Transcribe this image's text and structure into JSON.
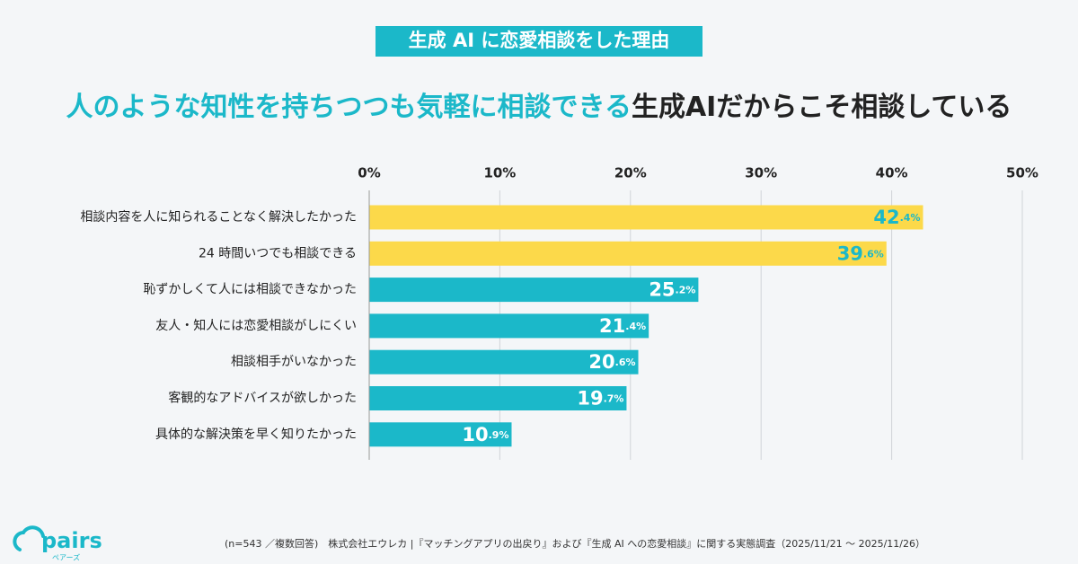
{
  "title_box": "生成 AI に恋愛相談をした理由",
  "headline": {
    "highlight": "人のような知性を持ちつつも気軽に相談できる",
    "rest": "生成AIだからこそ相談している"
  },
  "chart_data": {
    "type": "bar",
    "orientation": "horizontal",
    "categories": [
      "相談内容を人に知られることなく解決したかった",
      "24 時間いつでも相談できる",
      "恥ずかしくて人には相談できなかった",
      "友人・知人には恋愛相談がしにくい",
      "相談相手がいなかった",
      "客観的なアドバイスが欲しかった",
      "具体的な解決策を早く知りたかった"
    ],
    "values": [
      42.4,
      39.6,
      25.2,
      21.4,
      20.6,
      19.7,
      10.9
    ],
    "value_labels": [
      "42.4%",
      "39.6%",
      "25.2%",
      "21.4%",
      "20.6%",
      "19.7%",
      "10.9%"
    ],
    "colors": [
      "#fcd94a",
      "#fcd94a",
      "#1bb8c9",
      "#1bb8c9",
      "#1bb8c9",
      "#1bb8c9",
      "#1bb8c9"
    ],
    "value_label_colors": [
      "#1bb8c9",
      "#1bb8c9",
      "#ffffff",
      "#ffffff",
      "#ffffff",
      "#ffffff",
      "#ffffff"
    ],
    "xlim": [
      0,
      50
    ],
    "xticks": [
      {
        "value": 0,
        "label": "0%"
      },
      {
        "value": 10,
        "label": "10%"
      },
      {
        "value": 20,
        "label": "20%"
      },
      {
        "value": 30,
        "label": "30%"
      },
      {
        "value": 40,
        "label": "40%"
      },
      {
        "value": 50,
        "label": "50%"
      }
    ],
    "grid": true
  },
  "footer": "(n=543 ／複数回答)　株式会社エウレカ |『マッチングアプリの出戻り』および『生成 AI への恋愛相談』に関する実態調査（2025/11/21 ～ 2025/11/26）",
  "logo": {
    "name": "pairs",
    "reading": "ペアーズ"
  }
}
